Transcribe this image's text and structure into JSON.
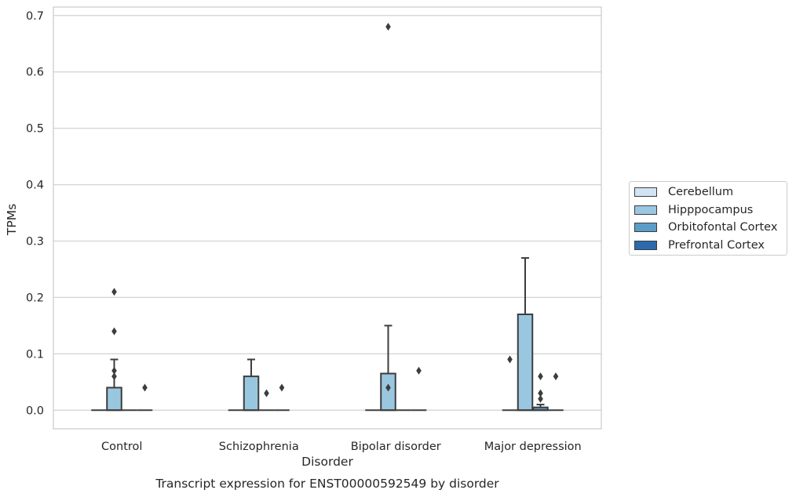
{
  "chart_data": {
    "type": "box",
    "title": "Transcript expression for ENST00000592549 by disorder",
    "xlabel": "Disorder",
    "ylabel": "TPMs",
    "ylim": [
      -0.033,
      0.715
    ],
    "yticks": [
      "0.0",
      "0.1",
      "0.2",
      "0.3",
      "0.4",
      "0.5",
      "0.6",
      "0.7"
    ],
    "grid": true,
    "legend_position": "right",
    "categories": [
      "Control",
      "Schizophrenia",
      "Bipolar disorder",
      "Major depression"
    ],
    "series": [
      {
        "name": "Cerebellum",
        "color": "#d2e3f3",
        "boxes": [
          {
            "q1": 0,
            "median": 0,
            "q3": 0,
            "whisker_low": 0,
            "whisker_high": 0,
            "outliers": []
          },
          {
            "q1": 0,
            "median": 0,
            "q3": 0,
            "whisker_low": 0,
            "whisker_high": 0,
            "outliers": []
          },
          {
            "q1": 0,
            "median": 0,
            "q3": 0,
            "whisker_low": 0,
            "whisker_high": 0,
            "outliers": []
          },
          {
            "q1": 0,
            "median": 0,
            "q3": 0,
            "whisker_low": 0,
            "whisker_high": 0,
            "outliers": [
              0.09
            ]
          }
        ]
      },
      {
        "name": "Hipppocampus",
        "color": "#9ac7e0",
        "boxes": [
          {
            "q1": 0,
            "median": 0,
            "q3": 0.04,
            "whisker_low": 0,
            "whisker_high": 0.09,
            "outliers": [
              0.06,
              0.07,
              0.14,
              0.21
            ]
          },
          {
            "q1": 0,
            "median": 0,
            "q3": 0.06,
            "whisker_low": 0,
            "whisker_high": 0.09,
            "outliers": []
          },
          {
            "q1": 0,
            "median": 0,
            "q3": 0.065,
            "whisker_low": 0,
            "whisker_high": 0.15,
            "outliers": [
              0.04,
              0.68
            ]
          },
          {
            "q1": 0,
            "median": 0,
            "q3": 0.17,
            "whisker_low": 0,
            "whisker_high": 0.27,
            "outliers": []
          }
        ]
      },
      {
        "name": "Orbitofontal Cortex",
        "color": "#5b9dc9",
        "boxes": [
          {
            "q1": 0,
            "median": 0,
            "q3": 0,
            "whisker_low": 0,
            "whisker_high": 0,
            "outliers": []
          },
          {
            "q1": 0,
            "median": 0,
            "q3": 0,
            "whisker_low": 0,
            "whisker_high": 0,
            "outliers": [
              0.03
            ]
          },
          {
            "q1": 0,
            "median": 0,
            "q3": 0,
            "whisker_low": 0,
            "whisker_high": 0,
            "outliers": []
          },
          {
            "q1": 0,
            "median": 0,
            "q3": 0.005,
            "whisker_low": 0,
            "whisker_high": 0.01,
            "outliers": [
              0.02,
              0.03,
              0.06
            ]
          }
        ]
      },
      {
        "name": "Prefrontal Cortex",
        "color": "#2a6aad",
        "boxes": [
          {
            "q1": 0,
            "median": 0,
            "q3": 0,
            "whisker_low": 0,
            "whisker_high": 0,
            "outliers": [
              0.04
            ]
          },
          {
            "q1": 0,
            "median": 0,
            "q3": 0,
            "whisker_low": 0,
            "whisker_high": 0,
            "outliers": [
              0.04
            ]
          },
          {
            "q1": 0,
            "median": 0,
            "q3": 0,
            "whisker_low": 0,
            "whisker_high": 0,
            "outliers": [
              0.07
            ]
          },
          {
            "q1": 0,
            "median": 0,
            "q3": 0,
            "whisker_low": 0,
            "whisker_high": 0,
            "outliers": [
              0.06
            ]
          }
        ]
      }
    ]
  }
}
